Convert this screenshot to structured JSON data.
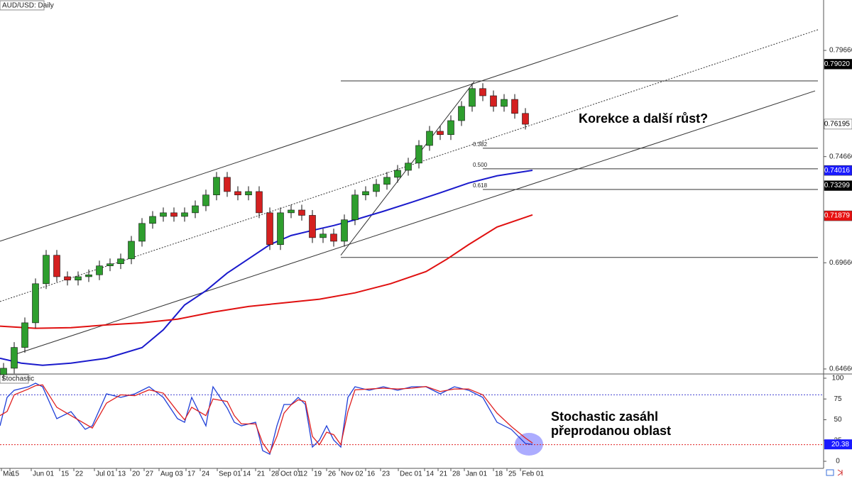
{
  "chart_data": [
    {
      "type": "candlestick",
      "title": "AUD/USD: Daily",
      "x": [
        1,
        4,
        7,
        10,
        13,
        16,
        19,
        22,
        25,
        28,
        31,
        34,
        37,
        40,
        43,
        46,
        49,
        52,
        55,
        58,
        61,
        64,
        67,
        70,
        73,
        76,
        79,
        82,
        85,
        88,
        91,
        94,
        97,
        100,
        103,
        106,
        109,
        112,
        115,
        118,
        121,
        124,
        127,
        130,
        133,
        136,
        139,
        142,
        145,
        148
      ],
      "open": [
        0.644,
        0.647,
        0.6568,
        0.6684,
        0.6868,
        0.7002,
        0.6901,
        0.6885,
        0.6901,
        0.691,
        0.6952,
        0.6962,
        0.6985,
        0.7068,
        0.7152,
        0.7185,
        0.7202,
        0.7185,
        0.7202,
        0.7235,
        0.7286,
        0.7369,
        0.7302,
        0.7286,
        0.7302,
        0.7202,
        0.7052,
        0.7202,
        0.7215,
        0.719,
        0.7085,
        0.7102,
        0.7068,
        0.7169,
        0.7286,
        0.7302,
        0.7336,
        0.7369,
        0.7402,
        0.7436,
        0.7519,
        0.7586,
        0.757,
        0.7636,
        0.7703,
        0.7787,
        0.7753,
        0.7703,
        0.7736,
        0.767
      ],
      "high": [
        0.6495,
        0.6593,
        0.6709,
        0.6893,
        0.7027,
        0.7027,
        0.6926,
        0.6926,
        0.6935,
        0.6977,
        0.6987,
        0.701,
        0.7093,
        0.7177,
        0.721,
        0.7227,
        0.7227,
        0.7227,
        0.726,
        0.7311,
        0.7394,
        0.7394,
        0.7327,
        0.7327,
        0.7327,
        0.7227,
        0.7227,
        0.724,
        0.724,
        0.7215,
        0.7127,
        0.7127,
        0.7194,
        0.7311,
        0.7327,
        0.7361,
        0.7394,
        0.7427,
        0.7461,
        0.7544,
        0.7611,
        0.7611,
        0.7661,
        0.7728,
        0.7812,
        0.7812,
        0.7778,
        0.7761,
        0.7761,
        0.7695
      ],
      "low": [
        0.6415,
        0.6445,
        0.6543,
        0.6659,
        0.6843,
        0.6876,
        0.686,
        0.686,
        0.6876,
        0.6885,
        0.6927,
        0.6937,
        0.696,
        0.7043,
        0.7127,
        0.716,
        0.716,
        0.716,
        0.7177,
        0.721,
        0.7261,
        0.7277,
        0.7261,
        0.7261,
        0.7177,
        0.7027,
        0.7027,
        0.7177,
        0.7165,
        0.706,
        0.706,
        0.7043,
        0.7043,
        0.7144,
        0.7261,
        0.7277,
        0.7311,
        0.7344,
        0.7377,
        0.7411,
        0.7494,
        0.7545,
        0.7545,
        0.7611,
        0.7678,
        0.7728,
        0.7678,
        0.7678,
        0.7645,
        0.7594
      ],
      "close": [
        0.647,
        0.6568,
        0.6684,
        0.6868,
        0.7002,
        0.6901,
        0.6885,
        0.6901,
        0.691,
        0.6952,
        0.6962,
        0.6985,
        0.7068,
        0.7152,
        0.7185,
        0.7202,
        0.7185,
        0.7202,
        0.7235,
        0.7286,
        0.7369,
        0.7302,
        0.7286,
        0.7302,
        0.7202,
        0.7052,
        0.7202,
        0.7215,
        0.719,
        0.7085,
        0.7102,
        0.7068,
        0.7169,
        0.7286,
        0.7302,
        0.7336,
        0.7369,
        0.7402,
        0.7436,
        0.7519,
        0.7586,
        0.757,
        0.7636,
        0.7703,
        0.7787,
        0.7753,
        0.7703,
        0.7736,
        0.767,
        0.7619
      ],
      "up_color": "#2e9e2e",
      "down_color": "#d42020",
      "xlim": [
        0,
        232
      ],
      "ylim": [
        0.6443,
        0.8204
      ],
      "yticks": [
        0.64666,
        0.69666,
        0.74666,
        0.79666
      ],
      "price_markers": [
        {
          "value": 0.7902,
          "label": "0.79020",
          "background": "#000000",
          "text_color": "#ffffff"
        },
        {
          "value": 0.76195,
          "label": "0.76195",
          "background": "#ffffff",
          "text_color": "#000000"
        },
        {
          "value": 0.74016,
          "label": "0.74016",
          "background": "#1a1aff",
          "text_color": "#ffffff"
        },
        {
          "value": 0.73299,
          "label": "0.73299",
          "background": "#000000",
          "text_color": "#ffffff"
        },
        {
          "value": 0.71879,
          "label": "0.71879",
          "background": "#e81010",
          "text_color": "#ffffff"
        }
      ],
      "series": [
        {
          "color": "#1a1acc",
          "x": [
            0,
            6,
            12,
            20,
            30,
            40,
            46,
            52,
            58,
            64,
            70,
            76,
            82,
            88,
            94,
            100,
            108,
            116,
            124,
            132,
            140,
            150
          ],
          "values": [
            0.6517,
            0.6494,
            0.6484,
            0.6494,
            0.6517,
            0.6567,
            0.6651,
            0.6768,
            0.6835,
            0.6918,
            0.6985,
            0.7052,
            0.7095,
            0.7119,
            0.7142,
            0.7169,
            0.7209,
            0.7252,
            0.7296,
            0.7342,
            0.7376,
            0.7402
          ]
        },
        {
          "color": "#e01010",
          "x": [
            0,
            10,
            20,
            30,
            40,
            50,
            60,
            70,
            80,
            90,
            100,
            110,
            120,
            126,
            132,
            140,
            150
          ],
          "values": [
            0.6668,
            0.6658,
            0.6661,
            0.6674,
            0.6684,
            0.6701,
            0.6734,
            0.6761,
            0.6778,
            0.6795,
            0.6825,
            0.6868,
            0.6925,
            0.6985,
            0.7052,
            0.7135,
            0.7192
          ]
        }
      ],
      "trendlines": [
        {
          "x": [
            0,
            191
          ],
          "y": [
            0.7068,
            0.8131
          ],
          "style": "solid"
        },
        {
          "x": [
            0,
            230.4
          ],
          "y": [
            0.6784,
            0.8064
          ],
          "style": "dotted"
        },
        {
          "x": [
            4,
            229.6
          ],
          "y": [
            0.6534,
            0.7776
          ],
          "style": "solid"
        },
        {
          "x": [
            96,
            133.6
          ],
          "y": [
            0.7002,
            0.782
          ],
          "style": "solid"
        }
      ],
      "fib_levels": [
        {
          "value": 0.7823,
          "x": [
            96,
            230.4
          ]
        },
        {
          "value": 0.7506,
          "x": [
            136,
            230.4
          ],
          "label": "0.382"
        },
        {
          "value": 0.7409,
          "x": [
            136,
            230.4
          ],
          "label": "0.500"
        },
        {
          "value": 0.7312,
          "x": [
            136,
            230.4
          ],
          "label": "0.618"
        },
        {
          "value": 0.6992,
          "x": [
            96,
            230.4
          ]
        }
      ],
      "annotation": "Korekce a další růst?"
    },
    {
      "type": "line",
      "title": "Stochastic",
      "x": [
        0,
        2,
        4,
        8,
        10,
        12,
        16,
        20,
        24,
        26,
        30,
        34,
        38,
        42,
        46,
        50,
        52,
        54,
        58,
        60,
        64,
        66,
        68,
        72,
        74,
        76,
        78,
        80,
        82,
        84,
        86,
        88,
        90,
        92,
        94,
        96,
        98,
        100,
        104,
        108,
        112,
        116,
        120,
        124,
        128,
        132,
        136,
        140,
        144,
        148,
        150
      ],
      "series": [
        {
          "color": "#1f3fd8",
          "values": [
            42.7,
            76.9,
            85.5,
            89.7,
            94.0,
            89.7,
            51.3,
            59.8,
            38.5,
            42.7,
            81.2,
            76.9,
            81.2,
            89.7,
            76.9,
            51.3,
            47.0,
            76.9,
            42.7,
            89.7,
            64.1,
            47.0,
            42.7,
            47.0,
            12.8,
            8.5,
            42.7,
            68.4,
            68.4,
            76.9,
            68.4,
            17.1,
            25.6,
            42.7,
            25.6,
            17.1,
            76.9,
            89.7,
            85.5,
            89.7,
            85.5,
            89.7,
            89.7,
            81.2,
            89.7,
            85.5,
            76.9,
            47.0,
            38.5,
            21.4,
            20.38
          ]
        },
        {
          "color": "#e02020",
          "values": [
            55,
            60,
            80,
            87,
            91,
            92,
            65,
            55,
            45,
            40,
            70,
            80,
            79,
            86,
            82,
            60,
            50,
            65,
            55,
            75,
            72,
            55,
            45,
            45,
            22,
            10,
            30,
            58,
            68,
            74,
            72,
            30,
            20,
            35,
            32,
            20,
            60,
            86,
            87,
            88,
            87,
            88,
            90,
            84,
            87,
            87,
            80,
            58,
            42,
            28,
            22
          ]
        }
      ],
      "levels": [
        {
          "value": 80,
          "color": "#4040d0"
        },
        {
          "value": 20,
          "color": "#e02020"
        }
      ],
      "last_value": 20.38,
      "last_value_color": "#1a1aff",
      "xlim": [
        0,
        232
      ],
      "ylim": [
        -8.5,
        105.1
      ],
      "yticks": [
        0,
        25,
        50,
        75,
        100
      ],
      "xticks": [
        {
          "value": 0.4,
          "label": "Ma"
        },
        {
          "value": 2.8,
          "label": "15"
        },
        {
          "value": 8.8,
          "label": "Jun 01"
        },
        {
          "value": 16.8,
          "label": "15"
        },
        {
          "value": 20.8,
          "label": "22"
        },
        {
          "value": 26.6,
          "label": "Jul 01"
        },
        {
          "value": 32.8,
          "label": "13"
        },
        {
          "value": 36.8,
          "label": "20"
        },
        {
          "value": 40.6,
          "label": "27"
        },
        {
          "value": 44.8,
          "label": "Aug 03"
        },
        {
          "value": 52.4,
          "label": "17"
        },
        {
          "value": 56.4,
          "label": "24"
        },
        {
          "value": 61.2,
          "label": "Sep 01"
        },
        {
          "value": 68,
          "label": "14"
        },
        {
          "value": 72,
          "label": "21"
        },
        {
          "value": 76,
          "label": "28"
        },
        {
          "value": 78.6,
          "label": "Oct 01"
        },
        {
          "value": 84,
          "label": "12"
        },
        {
          "value": 88,
          "label": "19"
        },
        {
          "value": 92,
          "label": "26"
        },
        {
          "value": 95.6,
          "label": "Nov 02"
        },
        {
          "value": 103,
          "label": "16"
        },
        {
          "value": 107.2,
          "label": "23"
        },
        {
          "value": 112.2,
          "label": "Dec 01"
        },
        {
          "value": 119.6,
          "label": "14"
        },
        {
          "value": 123.4,
          "label": "21"
        },
        {
          "value": 127,
          "label": "28"
        },
        {
          "value": 130.8,
          "label": "Jan 01"
        },
        {
          "value": 139,
          "label": "18"
        },
        {
          "value": 142.8,
          "label": "25"
        },
        {
          "value": 146.6,
          "label": "Feb 01"
        }
      ],
      "annotation": [
        "Stochastic zasáhl",
        "přeprodanou oblast"
      ]
    }
  ]
}
